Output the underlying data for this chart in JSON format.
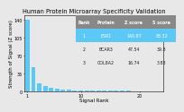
{
  "title": "Human Protein Microarray Specificity Validation",
  "xlabel": "Signal Rank",
  "ylabel": "Strength of Signal (Z score)",
  "yticks": [
    0,
    35,
    70,
    105,
    140
  ],
  "ylim": [
    0,
    150
  ],
  "xlim": [
    0.5,
    24
  ],
  "bar_color": "#5bc8f5",
  "bar_values": [
    140.87,
    47.54,
    16.74,
    10.5,
    7.2,
    5.3,
    4.0,
    3.3,
    2.8,
    2.5,
    2.2,
    2.0,
    1.8,
    1.7,
    1.6,
    1.5,
    1.4,
    1.3,
    1.2,
    1.15,
    1.1,
    1.05,
    1.0
  ],
  "xticks": [
    1,
    10,
    20
  ],
  "table_headers": [
    "Rank",
    "Protein",
    "Z score",
    "S score"
  ],
  "table_rows": [
    [
      "1",
      "ESR1",
      "140.87",
      "83.32"
    ],
    [
      "2",
      "BCAR3",
      "47.54",
      "39.8"
    ],
    [
      "3",
      "COL8A2",
      "16.74",
      "3.83"
    ]
  ],
  "table_highlight_color": "#5bc8f5",
  "table_header_color": "#888888",
  "title_fontsize": 4.8,
  "axis_label_fontsize": 4.0,
  "tick_fontsize": 3.5,
  "table_fontsize": 3.4,
  "background_color": "#e8e8e8"
}
